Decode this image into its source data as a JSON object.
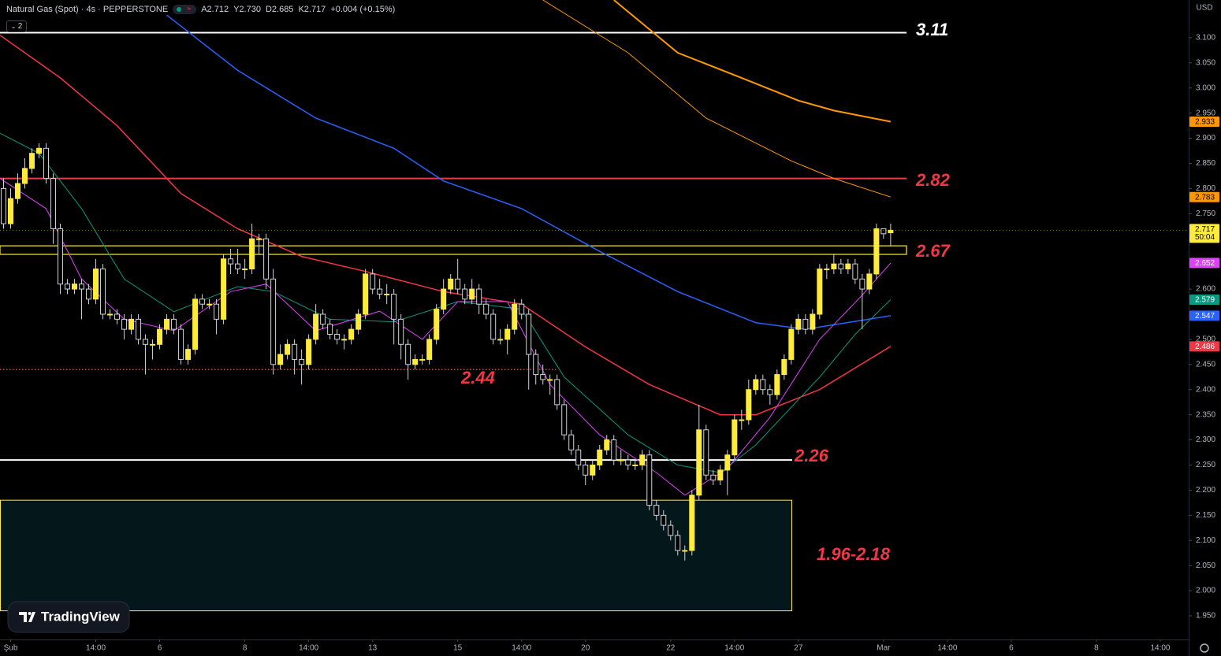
{
  "header": {
    "symbol": "Natural Gas (Spot) · 4s · PEPPERSTONE",
    "ohlc": [
      "A2.712",
      "Y2.730",
      "D2.685",
      "K2.717"
    ],
    "change": "+0.004 (+0.15%)",
    "indicator_count": "2",
    "logo": "TradingView"
  },
  "chart_data": {
    "type": "candlestick",
    "currency": "USD",
    "countdown": "50:04",
    "up_color": "#ffeb3b",
    "down_color": "#000000",
    "wick_color": "#d1d4dc",
    "x": [
      -1,
      0,
      1,
      2,
      3,
      4,
      5,
      6,
      7,
      8,
      9,
      10,
      11,
      12,
      13,
      14,
      15,
      16,
      17,
      18,
      19,
      20,
      21,
      22,
      23,
      24,
      25,
      26,
      27,
      28,
      29,
      30,
      31,
      32,
      33,
      34,
      35,
      36,
      37,
      38,
      39,
      40,
      41,
      42,
      43,
      44,
      45,
      46,
      47,
      48,
      49,
      50,
      51,
      52,
      53,
      54,
      55,
      56,
      57,
      58,
      59,
      60,
      61,
      62,
      63,
      64,
      65,
      66,
      67,
      68,
      69,
      70,
      71,
      72,
      73,
      74,
      75,
      76,
      77,
      78,
      79,
      80,
      81,
      82,
      83,
      84,
      85,
      86,
      87,
      88,
      89,
      90,
      91,
      92,
      93,
      94,
      95,
      96,
      97,
      98,
      99,
      100,
      101,
      102,
      103,
      104,
      105,
      106,
      107,
      108,
      109,
      110,
      111,
      112,
      113,
      114,
      115,
      116,
      117,
      118,
      119,
      120,
      121,
      122,
      123,
      124
    ],
    "open": [
      2.8,
      2.73,
      2.78,
      2.81,
      2.84,
      2.87,
      2.88,
      2.82,
      2.72,
      2.61,
      2.6,
      2.61,
      2.6,
      2.58,
      2.64,
      2.55,
      2.55,
      2.54,
      2.52,
      2.54,
      2.5,
      2.49,
      2.49,
      2.52,
      2.54,
      2.52,
      2.46,
      2.48,
      2.58,
      2.57,
      2.57,
      2.54,
      2.66,
      2.65,
      2.64,
      2.64,
      2.7,
      2.7,
      2.62,
      2.45,
      2.47,
      2.49,
      2.46,
      2.45,
      2.5,
      2.55,
      2.53,
      2.51,
      2.5,
      2.5,
      2.52,
      2.55,
      2.63,
      2.6,
      2.59,
      2.59,
      2.54,
      2.49,
      2.45,
      2.46,
      2.46,
      2.5,
      2.56,
      2.6,
      2.62,
      2.6,
      2.58,
      2.6,
      2.57,
      2.55,
      2.5,
      2.5,
      2.52,
      2.57,
      2.55,
      2.47,
      2.43,
      2.42,
      2.42,
      2.37,
      2.31,
      2.28,
      2.25,
      2.23,
      2.25,
      2.28,
      2.3,
      2.26,
      2.26,
      2.25,
      2.25,
      2.27,
      2.17,
      2.15,
      2.13,
      2.11,
      2.08,
      2.08,
      2.19,
      2.32,
      2.23,
      2.22,
      2.24,
      2.27,
      2.34,
      2.34,
      2.4,
      2.42,
      2.4,
      2.39,
      2.43,
      2.46,
      2.52,
      2.54,
      2.52,
      2.55,
      2.64,
      2.64,
      2.65,
      2.64,
      2.65,
      2.62,
      2.6,
      2.63,
      2.72,
      2.712
    ],
    "high": [
      2.82,
      2.8,
      2.83,
      2.86,
      2.88,
      2.89,
      2.89,
      2.83,
      2.73,
      2.62,
      2.62,
      2.62,
      2.61,
      2.66,
      2.65,
      2.56,
      2.56,
      2.55,
      2.55,
      2.55,
      2.51,
      2.5,
      2.53,
      2.55,
      2.55,
      2.53,
      2.49,
      2.59,
      2.59,
      2.58,
      2.58,
      2.67,
      2.68,
      2.68,
      2.66,
      2.73,
      2.71,
      2.71,
      2.64,
      2.49,
      2.5,
      2.5,
      2.48,
      2.51,
      2.57,
      2.56,
      2.54,
      2.52,
      2.51,
      2.53,
      2.56,
      2.64,
      2.64,
      2.62,
      2.61,
      2.6,
      2.55,
      2.5,
      2.47,
      2.47,
      2.51,
      2.57,
      2.62,
      2.63,
      2.66,
      2.61,
      2.62,
      2.61,
      2.58,
      2.56,
      2.52,
      2.53,
      2.58,
      2.58,
      2.56,
      2.48,
      2.45,
      2.43,
      2.43,
      2.38,
      2.32,
      2.29,
      2.26,
      2.26,
      2.29,
      2.31,
      2.31,
      2.28,
      2.27,
      2.26,
      2.28,
      2.28,
      2.18,
      2.16,
      2.14,
      2.12,
      2.09,
      2.2,
      2.37,
      2.33,
      2.24,
      2.25,
      2.28,
      2.35,
      2.36,
      2.42,
      2.43,
      2.43,
      2.41,
      2.44,
      2.47,
      2.53,
      2.55,
      2.55,
      2.56,
      2.65,
      2.65,
      2.67,
      2.66,
      2.66,
      2.66,
      2.63,
      2.64,
      2.73,
      2.72,
      2.73
    ],
    "low": [
      2.72,
      2.72,
      2.77,
      2.8,
      2.83,
      2.86,
      2.81,
      2.69,
      2.59,
      2.59,
      2.59,
      2.54,
      2.57,
      2.57,
      2.54,
      2.54,
      2.53,
      2.5,
      2.51,
      2.49,
      2.43,
      2.46,
      2.48,
      2.51,
      2.51,
      2.45,
      2.45,
      2.47,
      2.56,
      2.56,
      2.51,
      2.53,
      2.63,
      2.63,
      2.62,
      2.63,
      2.67,
      2.6,
      2.43,
      2.44,
      2.46,
      2.43,
      2.41,
      2.44,
      2.49,
      2.52,
      2.5,
      2.49,
      2.48,
      2.49,
      2.51,
      2.54,
      2.59,
      2.58,
      2.57,
      2.49,
      2.46,
      2.42,
      2.44,
      2.45,
      2.45,
      2.49,
      2.55,
      2.59,
      2.59,
      2.57,
      2.57,
      2.55,
      2.54,
      2.49,
      2.49,
      2.47,
      2.51,
      2.54,
      2.4,
      2.41,
      2.41,
      2.39,
      2.36,
      2.3,
      2.27,
      2.24,
      2.21,
      2.22,
      2.24,
      2.27,
      2.25,
      2.25,
      2.24,
      2.24,
      2.24,
      2.16,
      2.14,
      2.12,
      2.1,
      2.07,
      2.06,
      2.07,
      2.18,
      2.22,
      2.21,
      2.21,
      2.19,
      2.26,
      2.32,
      2.33,
      2.39,
      2.39,
      2.37,
      2.38,
      2.42,
      2.45,
      2.51,
      2.51,
      2.51,
      2.54,
      2.62,
      2.63,
      2.63,
      2.63,
      2.61,
      2.52,
      2.59,
      2.62,
      2.7,
      2.685
    ],
    "close": [
      2.73,
      2.78,
      2.81,
      2.84,
      2.87,
      2.88,
      2.82,
      2.72,
      2.61,
      2.6,
      2.61,
      2.6,
      2.58,
      2.64,
      2.55,
      2.55,
      2.54,
      2.52,
      2.54,
      2.5,
      2.49,
      2.49,
      2.52,
      2.54,
      2.52,
      2.46,
      2.48,
      2.58,
      2.57,
      2.57,
      2.54,
      2.66,
      2.65,
      2.64,
      2.64,
      2.7,
      2.7,
      2.62,
      2.45,
      2.47,
      2.49,
      2.46,
      2.45,
      2.5,
      2.55,
      2.53,
      2.51,
      2.5,
      2.5,
      2.52,
      2.55,
      2.63,
      2.6,
      2.59,
      2.59,
      2.54,
      2.49,
      2.45,
      2.46,
      2.46,
      2.5,
      2.56,
      2.6,
      2.62,
      2.6,
      2.58,
      2.6,
      2.57,
      2.55,
      2.5,
      2.5,
      2.52,
      2.57,
      2.55,
      2.47,
      2.43,
      2.42,
      2.42,
      2.37,
      2.31,
      2.28,
      2.25,
      2.23,
      2.25,
      2.28,
      2.3,
      2.26,
      2.26,
      2.25,
      2.25,
      2.27,
      2.17,
      2.15,
      2.13,
      2.11,
      2.08,
      2.08,
      2.19,
      2.32,
      2.23,
      2.22,
      2.24,
      2.27,
      2.34,
      2.34,
      2.4,
      2.42,
      2.4,
      2.39,
      2.43,
      2.46,
      2.52,
      2.54,
      2.52,
      2.55,
      2.64,
      2.64,
      2.65,
      2.64,
      2.65,
      2.62,
      2.6,
      2.63,
      2.72,
      2.71,
      2.717
    ],
    "series": [
      {
        "color": "#ff9800",
        "width": 2,
        "x": [
          85,
          94,
          103,
          111,
          116,
          124
        ],
        "values": [
          3.175,
          3.07,
          3.02,
          2.975,
          2.955,
          2.933
        ]
      },
      {
        "color": "#ff9800",
        "width": 1,
        "x": [
          75,
          87,
          98,
          110,
          116,
          124
        ],
        "values": [
          3.175,
          3.07,
          2.94,
          2.855,
          2.82,
          2.783
        ]
      },
      {
        "color": "#f23645",
        "width": 1.5,
        "x": [
          -1.5,
          7,
          15,
          24,
          32,
          41,
          50,
          61,
          72,
          81,
          90,
          100,
          105,
          114,
          124
        ],
        "values": [
          3.105,
          3.02,
          2.925,
          2.79,
          2.72,
          2.665,
          2.635,
          2.595,
          2.57,
          2.485,
          2.41,
          2.35,
          2.35,
          2.4,
          2.486
        ]
      },
      {
        "color": "#2962ff",
        "width": 1.5,
        "x": [
          22,
          32,
          43,
          54,
          61,
          72,
          83,
          94,
          105,
          112,
          124
        ],
        "values": [
          3.145,
          3.035,
          2.94,
          2.88,
          2.815,
          2.76,
          2.675,
          2.595,
          2.533,
          2.52,
          2.547
        ]
      },
      {
        "color": "#089981",
        "width": 1,
        "x": [
          -1.5,
          4,
          10,
          16,
          23,
          32,
          37,
          45,
          54,
          63,
          72,
          78,
          87,
          94,
          100,
          105,
          114,
          119,
          124
        ],
        "values": [
          2.91,
          2.87,
          2.76,
          2.62,
          2.555,
          2.605,
          2.595,
          2.54,
          2.535,
          2.575,
          2.56,
          2.425,
          2.31,
          2.25,
          2.235,
          2.29,
          2.425,
          2.51,
          2.579
        ]
      },
      {
        "color": "#e040fb",
        "width": 1,
        "x": [
          -1.5,
          5,
          10,
          16,
          23,
          31,
          36,
          43,
          52,
          58,
          63,
          70,
          76,
          83,
          91,
          95,
          101,
          107,
          114,
          120,
          124
        ],
        "values": [
          2.82,
          2.76,
          2.62,
          2.54,
          2.517,
          2.595,
          2.61,
          2.517,
          2.556,
          2.5,
          2.575,
          2.575,
          2.41,
          2.31,
          2.235,
          2.19,
          2.243,
          2.345,
          2.5,
          2.588,
          2.652
        ]
      }
    ],
    "levels": [
      {
        "value": 3.11,
        "color": "#ffffff",
        "style": "solid"
      },
      {
        "value": 2.82,
        "color": "#f23645",
        "style": "solid"
      },
      {
        "value": 2.67,
        "color": "#ffeb3b",
        "style": "band",
        "band": [
          2.669,
          2.686
        ]
      },
      {
        "value": 2.44,
        "color": "#f23645",
        "style": "dotted"
      },
      {
        "value": 2.26,
        "color": "#ffffff",
        "style": "solid"
      }
    ],
    "zone": {
      "label": "1.96-2.18",
      "low": 1.96,
      "high": 2.18,
      "color": "#ffeb3b",
      "fill": "#04181c"
    },
    "label_color": "#f23645",
    "xlim": [
      -1.5,
      166
    ],
    "ylim": [
      1.903,
      3.175
    ],
    "xticks": [
      {
        "value": 0,
        "label": "Şub"
      },
      {
        "value": 12,
        "label": "14:00"
      },
      {
        "value": 21,
        "label": "6"
      },
      {
        "value": 33,
        "label": "8"
      },
      {
        "value": 42,
        "label": "14:00"
      },
      {
        "value": 51,
        "label": "13"
      },
      {
        "value": 63,
        "label": "15"
      },
      {
        "value": 72,
        "label": "14:00"
      },
      {
        "value": 81,
        "label": "20"
      },
      {
        "value": 93,
        "label": "22"
      },
      {
        "value": 102,
        "label": "14:00"
      },
      {
        "value": 111,
        "label": "27"
      },
      {
        "value": 123,
        "label": "Mar"
      },
      {
        "value": 132,
        "label": "14:00"
      },
      {
        "value": 141,
        "label": "6"
      },
      {
        "value": 153,
        "label": "8"
      },
      {
        "value": 162,
        "label": "14:00"
      }
    ],
    "yticks": [
      {
        "value": 1.95,
        "label": "1.950"
      },
      {
        "value": 2.0,
        "label": "2.000"
      },
      {
        "value": 2.05,
        "label": "2.050"
      },
      {
        "value": 2.1,
        "label": "2.100"
      },
      {
        "value": 2.15,
        "label": "2.150"
      },
      {
        "value": 2.2,
        "label": "2.200"
      },
      {
        "value": 2.25,
        "label": "2.250"
      },
      {
        "value": 2.3,
        "label": "2.300"
      },
      {
        "value": 2.35,
        "label": "2.350"
      },
      {
        "value": 2.4,
        "label": "2.400"
      },
      {
        "value": 2.45,
        "label": "2.450"
      },
      {
        "value": 2.5,
        "label": "2.500"
      },
      {
        "value": 2.55,
        "label": "2.550"
      },
      {
        "value": 2.6,
        "label": "2.600"
      },
      {
        "value": 2.65,
        "label": "2.650"
      },
      {
        "value": 2.7,
        "label": "2.700"
      },
      {
        "value": 2.75,
        "label": "2.750"
      },
      {
        "value": 2.8,
        "label": "2.800"
      },
      {
        "value": 2.85,
        "label": "2.850"
      },
      {
        "value": 2.9,
        "label": "2.900"
      },
      {
        "value": 2.95,
        "label": "2.950"
      },
      {
        "value": 3.0,
        "label": "3.000"
      },
      {
        "value": 3.05,
        "label": "3.050"
      },
      {
        "value": 3.1,
        "label": "3.100"
      }
    ]
  }
}
